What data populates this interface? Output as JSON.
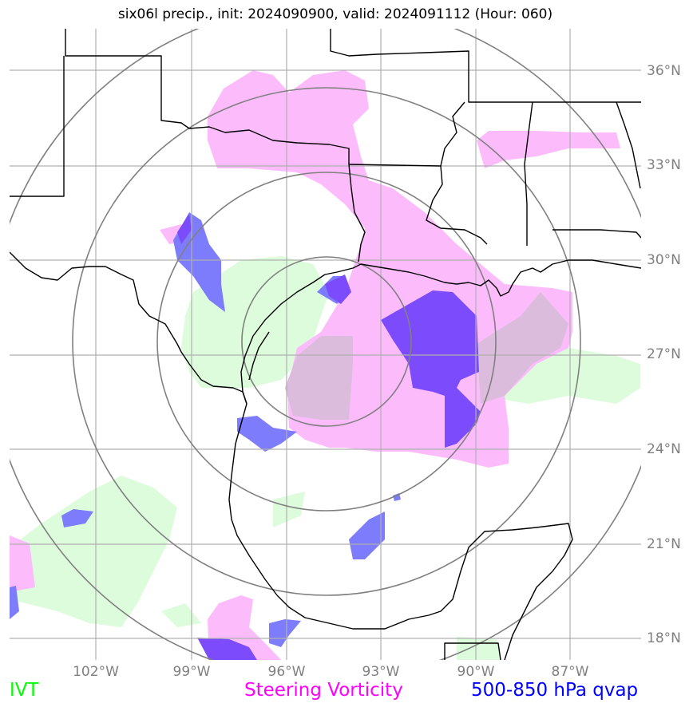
{
  "title": "six06l precip., init: 2024090900, valid: 2024091112 (Hour: 060)",
  "lat_labels": [
    "36°N",
    "33°N",
    "30°N",
    "27°N",
    "24°N",
    "21°N",
    "18°N"
  ],
  "lon_labels": [
    "102°W",
    "99°W",
    "96°W",
    "93°W",
    "90°W",
    "87°W"
  ],
  "legend": {
    "ivt": "IVT",
    "vorticity": "Steering Vorticity",
    "qvap": "500-850 hPa qvap"
  },
  "colors": {
    "ivt": "#00ff00",
    "ivt_fill": "#dcfcdc",
    "vorticity": "#ff00ff",
    "vorticity_fill": "#fcbcfc",
    "qvap": "#0000ff",
    "qvap_fill": "#7c7cfc",
    "qvap_dark": "#7c4cfc",
    "grid": "#b0b0b0",
    "rings": "#808080"
  }
}
